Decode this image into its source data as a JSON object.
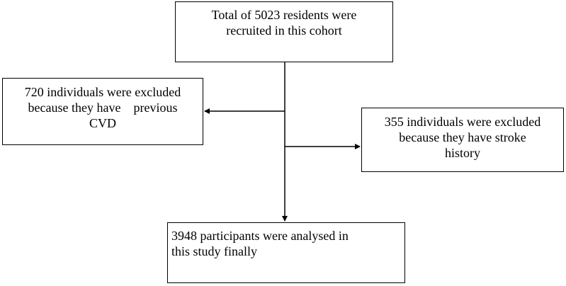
{
  "flowchart": {
    "total": {
      "lines": [
        "Total of 5023 residents were",
        "recruited in this cohort"
      ]
    },
    "excluded_cvd": {
      "lines": [
        "720 individuals were excluded",
        "because they have    previous",
        "CVD"
      ]
    },
    "excluded_stroke": {
      "lines": [
        "355 individuals were excluded",
        "because they have stroke",
        "history"
      ]
    },
    "final": {
      "lines": [
        "3948 participants were analysed in",
        "this study finally"
      ]
    }
  }
}
